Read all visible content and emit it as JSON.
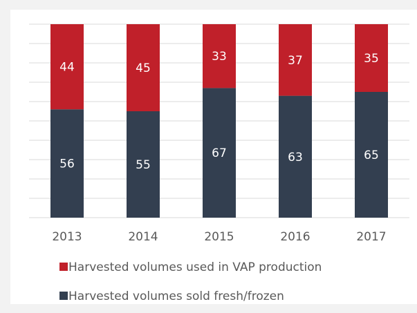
{
  "chart_data": {
    "type": "stacked_bar",
    "categories": [
      "2013",
      "2014",
      "2015",
      "2016",
      "2017"
    ],
    "series": [
      {
        "name": "Harvested volumes used in VAP production",
        "color": "#c0202a",
        "values": [
          44,
          45,
          33,
          37,
          35
        ]
      },
      {
        "name": "Harvested volumes sold fresh/frozen",
        "color": "#333f50",
        "values": [
          56,
          55,
          67,
          63,
          65
        ]
      }
    ],
    "ylim": [
      0,
      100
    ],
    "yticks": [
      0,
      10,
      20,
      30,
      40,
      50,
      60,
      70,
      80,
      90,
      100
    ],
    "grid": true
  }
}
